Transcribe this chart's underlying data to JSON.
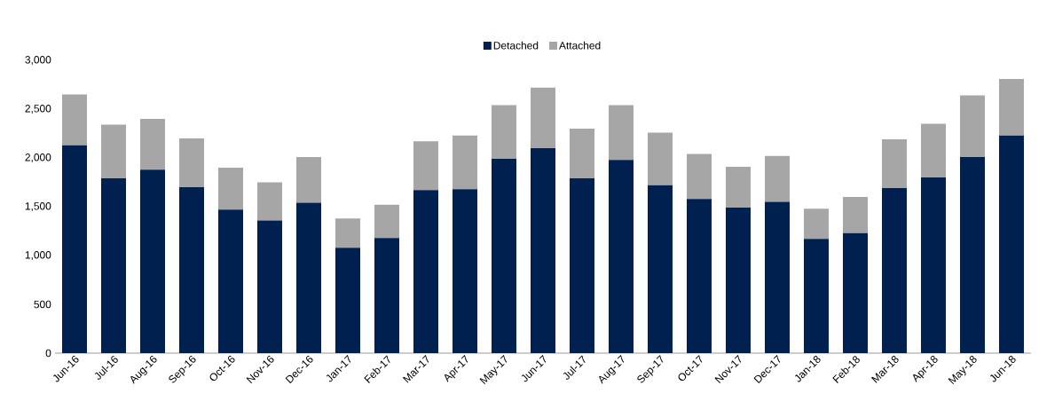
{
  "chart_data": {
    "type": "bar",
    "stacked": true,
    "legend": "top",
    "categories": [
      "Jun-16",
      "Jul-16",
      "Aug-16",
      "Sep-16",
      "Oct-16",
      "Nov-16",
      "Dec-16",
      "Jan-17",
      "Feb-17",
      "Mar-17",
      "Apr-17",
      "May-17",
      "Jun-17",
      "Jul-17",
      "Aug-17",
      "Sep-17",
      "Oct-17",
      "Nov-17",
      "Dec-17",
      "Jan-18",
      "Feb-18",
      "Mar-18",
      "Apr-18",
      "May-18",
      "Jun-18"
    ],
    "series": [
      {
        "name": "Detached",
        "color": "#002050",
        "values": [
          2130,
          1790,
          1880,
          1700,
          1470,
          1360,
          1540,
          1080,
          1180,
          1670,
          1680,
          1990,
          2100,
          1790,
          1980,
          1720,
          1580,
          1490,
          1550,
          1170,
          1230,
          1690,
          1800,
          2010,
          2230
        ]
      },
      {
        "name": "Attached",
        "color": "#a6a6a6",
        "values": [
          520,
          550,
          520,
          500,
          430,
          390,
          470,
          300,
          340,
          500,
          550,
          550,
          620,
          510,
          560,
          540,
          460,
          420,
          470,
          310,
          370,
          500,
          550,
          630,
          580
        ]
      }
    ],
    "ylim": [
      0,
      3000
    ],
    "yticks": [
      0,
      500,
      {
        "value": 1000,
        "label": "1,000"
      },
      {
        "value": 1500,
        "label": "1,500"
      },
      {
        "value": 2000,
        "label": "2,000"
      },
      {
        "value": 2500,
        "label": "2,500"
      },
      {
        "value": 3000,
        "label": "3,000"
      }
    ]
  }
}
